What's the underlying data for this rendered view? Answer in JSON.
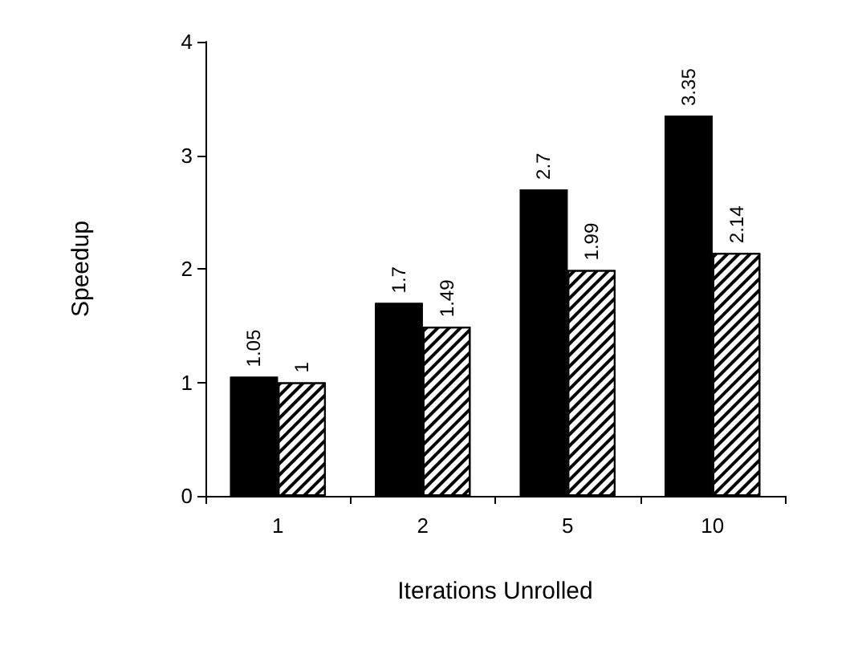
{
  "chart_data": {
    "type": "bar",
    "xlabel": "Iterations Unrolled",
    "ylabel": "Speedup",
    "categories": [
      "1",
      "2",
      "5",
      "10"
    ],
    "series": [
      {
        "color": "#000000",
        "values": [
          1.05,
          1.7,
          2.7,
          3.35
        ]
      },
      {
        "color": "#ffffff",
        "values": [
          1,
          1.49,
          1.99,
          2.14
        ]
      }
    ],
    "ylim": [
      0,
      4
    ],
    "yticks": [
      0,
      1,
      2,
      3,
      4
    ],
    "grid": false,
    "data_labels": true
  }
}
